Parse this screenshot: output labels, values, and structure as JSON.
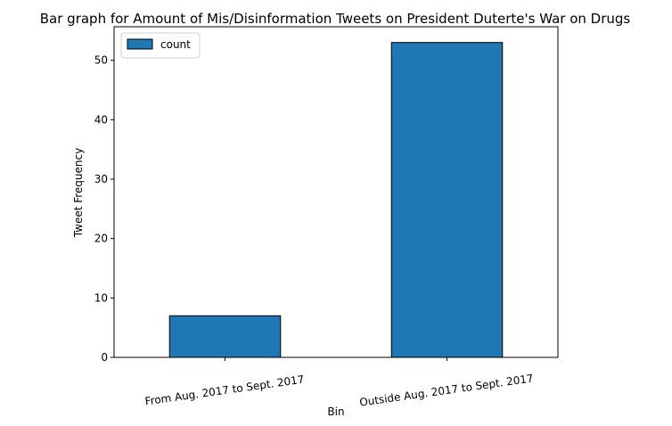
{
  "chart_data": {
    "type": "bar",
    "title": "Bar graph for Amount of Mis/Disinformation Tweets on President Duterte's War on Drugs",
    "xlabel": "Bin",
    "ylabel": "Tweet Frequency",
    "categories": [
      "From Aug. 2017 to Sept. 2017",
      "Outside Aug. 2017 to Sept. 2017"
    ],
    "series": [
      {
        "name": "count",
        "values": [
          7,
          53
        ],
        "color": "#1f77b4"
      }
    ],
    "ylim": [
      0,
      55.65
    ],
    "yticks": [
      0,
      10,
      20,
      30,
      40,
      50
    ],
    "xtick_rotation_deg": -8,
    "grid": false,
    "legend": {
      "position": "top-left",
      "entries": [
        "count"
      ]
    },
    "bar_edge_color": "#000000"
  }
}
